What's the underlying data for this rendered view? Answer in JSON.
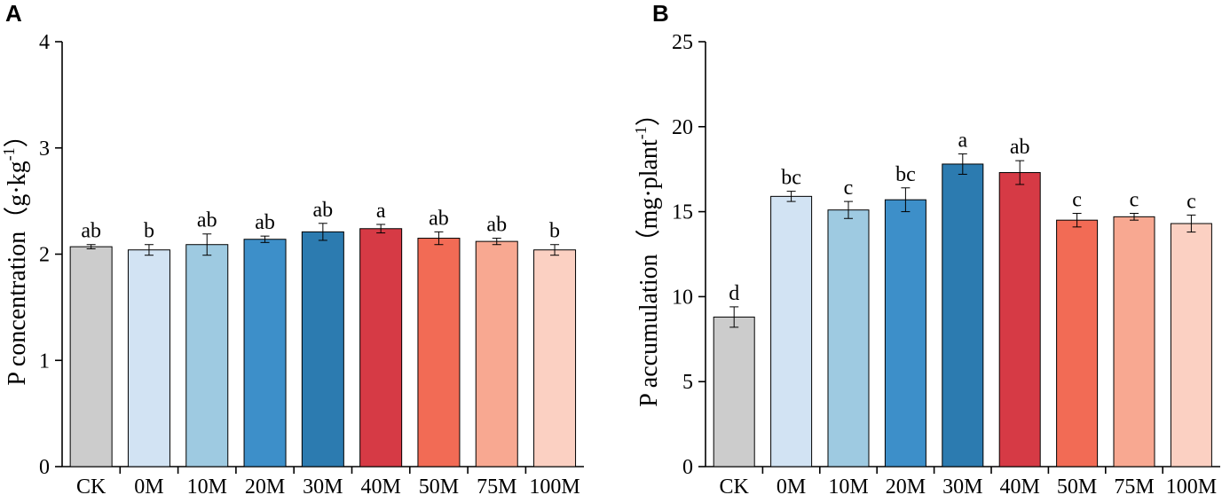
{
  "chart_data": [
    {
      "type": "bar",
      "panel": "A",
      "ylabel": "P concentration",
      "yunit": "（g·kg",
      "yunit_sup": "-1",
      "yunit_close": "）",
      "ylim": [
        0,
        4
      ],
      "yticks": [
        0,
        1,
        2,
        3,
        4
      ],
      "categories": [
        "CK",
        "0M",
        "10M",
        "20M",
        "30M",
        "40M",
        "50M",
        "75M",
        "100M"
      ],
      "values": [
        2.07,
        2.04,
        2.09,
        2.14,
        2.21,
        2.24,
        2.15,
        2.12,
        2.04
      ],
      "errors": [
        0.02,
        0.05,
        0.1,
        0.03,
        0.08,
        0.04,
        0.06,
        0.03,
        0.05
      ],
      "labels": [
        "ab",
        "b",
        "ab",
        "ab",
        "ab",
        "a",
        "ab",
        "ab",
        "b"
      ],
      "colors": [
        "#cccccc",
        "#d2e3f3",
        "#9ecae1",
        "#3d8fc9",
        "#2c7bb0",
        "#d63a45",
        "#f26b55",
        "#f8a891",
        "#fbd0c2"
      ]
    },
    {
      "type": "bar",
      "panel": "B",
      "ylabel": "P accumulation",
      "yunit": "（mg·plant",
      "yunit_sup": "-1",
      "yunit_close": "）",
      "ylim": [
        0,
        25
      ],
      "yticks": [
        0,
        5,
        10,
        15,
        20,
        25
      ],
      "categories": [
        "CK",
        "0M",
        "10M",
        "20M",
        "30M",
        "40M",
        "50M",
        "75M",
        "100M"
      ],
      "values": [
        8.8,
        15.9,
        15.1,
        15.7,
        17.8,
        17.3,
        14.5,
        14.7,
        14.3
      ],
      "errors": [
        0.6,
        0.3,
        0.5,
        0.7,
        0.6,
        0.7,
        0.4,
        0.2,
        0.5
      ],
      "labels": [
        "d",
        "bc",
        "c",
        "bc",
        "a",
        "ab",
        "c",
        "c",
        "c"
      ],
      "colors": [
        "#cccccc",
        "#d2e3f3",
        "#9ecae1",
        "#3d8fc9",
        "#2c7bb0",
        "#d63a45",
        "#f26b55",
        "#f8a891",
        "#fbd0c2"
      ]
    }
  ]
}
